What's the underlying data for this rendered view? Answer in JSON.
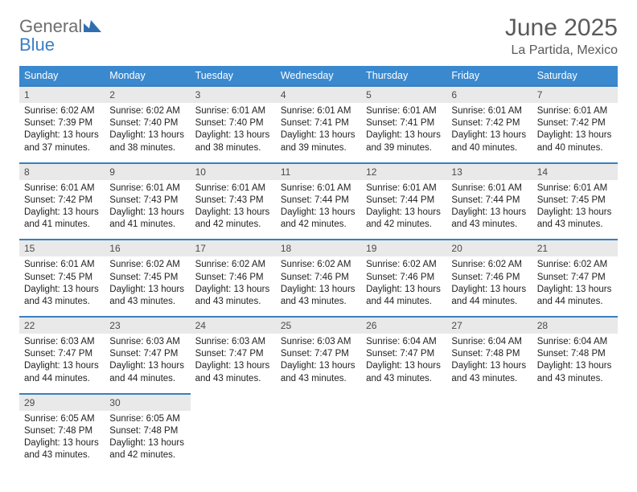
{
  "brand": {
    "general": "General",
    "blue": "Blue",
    "mark_color": "#2f6fb0"
  },
  "header": {
    "month_title": "June 2025",
    "location": "La Partida, Mexico"
  },
  "calendar": {
    "day_headers": [
      "Sunday",
      "Monday",
      "Tuesday",
      "Wednesday",
      "Thursday",
      "Friday",
      "Saturday"
    ],
    "header_bg": "#3a89cf",
    "header_text_color": "#ffffff",
    "cell_rule_color": "#3a7fbf",
    "daynum_bg": "#e9e9e9",
    "text_color": "#222222",
    "fontsize_header": 12.5,
    "fontsize_daynum": 12,
    "fontsize_info": 11.5,
    "grid": {
      "rows": 5,
      "cols": 7
    },
    "days": [
      {
        "n": "1",
        "sunrise": "6:02 AM",
        "sunset": "7:39 PM",
        "dl_h": "13",
        "dl_m": "37"
      },
      {
        "n": "2",
        "sunrise": "6:02 AM",
        "sunset": "7:40 PM",
        "dl_h": "13",
        "dl_m": "38"
      },
      {
        "n": "3",
        "sunrise": "6:01 AM",
        "sunset": "7:40 PM",
        "dl_h": "13",
        "dl_m": "38"
      },
      {
        "n": "4",
        "sunrise": "6:01 AM",
        "sunset": "7:41 PM",
        "dl_h": "13",
        "dl_m": "39"
      },
      {
        "n": "5",
        "sunrise": "6:01 AM",
        "sunset": "7:41 PM",
        "dl_h": "13",
        "dl_m": "39"
      },
      {
        "n": "6",
        "sunrise": "6:01 AM",
        "sunset": "7:42 PM",
        "dl_h": "13",
        "dl_m": "40"
      },
      {
        "n": "7",
        "sunrise": "6:01 AM",
        "sunset": "7:42 PM",
        "dl_h": "13",
        "dl_m": "40"
      },
      {
        "n": "8",
        "sunrise": "6:01 AM",
        "sunset": "7:42 PM",
        "dl_h": "13",
        "dl_m": "41"
      },
      {
        "n": "9",
        "sunrise": "6:01 AM",
        "sunset": "7:43 PM",
        "dl_h": "13",
        "dl_m": "41"
      },
      {
        "n": "10",
        "sunrise": "6:01 AM",
        "sunset": "7:43 PM",
        "dl_h": "13",
        "dl_m": "42"
      },
      {
        "n": "11",
        "sunrise": "6:01 AM",
        "sunset": "7:44 PM",
        "dl_h": "13",
        "dl_m": "42"
      },
      {
        "n": "12",
        "sunrise": "6:01 AM",
        "sunset": "7:44 PM",
        "dl_h": "13",
        "dl_m": "42"
      },
      {
        "n": "13",
        "sunrise": "6:01 AM",
        "sunset": "7:44 PM",
        "dl_h": "13",
        "dl_m": "43"
      },
      {
        "n": "14",
        "sunrise": "6:01 AM",
        "sunset": "7:45 PM",
        "dl_h": "13",
        "dl_m": "43"
      },
      {
        "n": "15",
        "sunrise": "6:01 AM",
        "sunset": "7:45 PM",
        "dl_h": "13",
        "dl_m": "43"
      },
      {
        "n": "16",
        "sunrise": "6:02 AM",
        "sunset": "7:45 PM",
        "dl_h": "13",
        "dl_m": "43"
      },
      {
        "n": "17",
        "sunrise": "6:02 AM",
        "sunset": "7:46 PM",
        "dl_h": "13",
        "dl_m": "43"
      },
      {
        "n": "18",
        "sunrise": "6:02 AM",
        "sunset": "7:46 PM",
        "dl_h": "13",
        "dl_m": "43"
      },
      {
        "n": "19",
        "sunrise": "6:02 AM",
        "sunset": "7:46 PM",
        "dl_h": "13",
        "dl_m": "44"
      },
      {
        "n": "20",
        "sunrise": "6:02 AM",
        "sunset": "7:46 PM",
        "dl_h": "13",
        "dl_m": "44"
      },
      {
        "n": "21",
        "sunrise": "6:02 AM",
        "sunset": "7:47 PM",
        "dl_h": "13",
        "dl_m": "44"
      },
      {
        "n": "22",
        "sunrise": "6:03 AM",
        "sunset": "7:47 PM",
        "dl_h": "13",
        "dl_m": "44"
      },
      {
        "n": "23",
        "sunrise": "6:03 AM",
        "sunset": "7:47 PM",
        "dl_h": "13",
        "dl_m": "44"
      },
      {
        "n": "24",
        "sunrise": "6:03 AM",
        "sunset": "7:47 PM",
        "dl_h": "13",
        "dl_m": "43"
      },
      {
        "n": "25",
        "sunrise": "6:03 AM",
        "sunset": "7:47 PM",
        "dl_h": "13",
        "dl_m": "43"
      },
      {
        "n": "26",
        "sunrise": "6:04 AM",
        "sunset": "7:47 PM",
        "dl_h": "13",
        "dl_m": "43"
      },
      {
        "n": "27",
        "sunrise": "6:04 AM",
        "sunset": "7:48 PM",
        "dl_h": "13",
        "dl_m": "43"
      },
      {
        "n": "28",
        "sunrise": "6:04 AM",
        "sunset": "7:48 PM",
        "dl_h": "13",
        "dl_m": "43"
      },
      {
        "n": "29",
        "sunrise": "6:05 AM",
        "sunset": "7:48 PM",
        "dl_h": "13",
        "dl_m": "43"
      },
      {
        "n": "30",
        "sunrise": "6:05 AM",
        "sunset": "7:48 PM",
        "dl_h": "13",
        "dl_m": "42"
      }
    ],
    "labels": {
      "sunrise_prefix": "Sunrise: ",
      "sunset_prefix": "Sunset: ",
      "daylight_prefix": "Daylight: ",
      "hours_word": " hours",
      "and_word": "and ",
      "minutes_word": " minutes."
    }
  }
}
